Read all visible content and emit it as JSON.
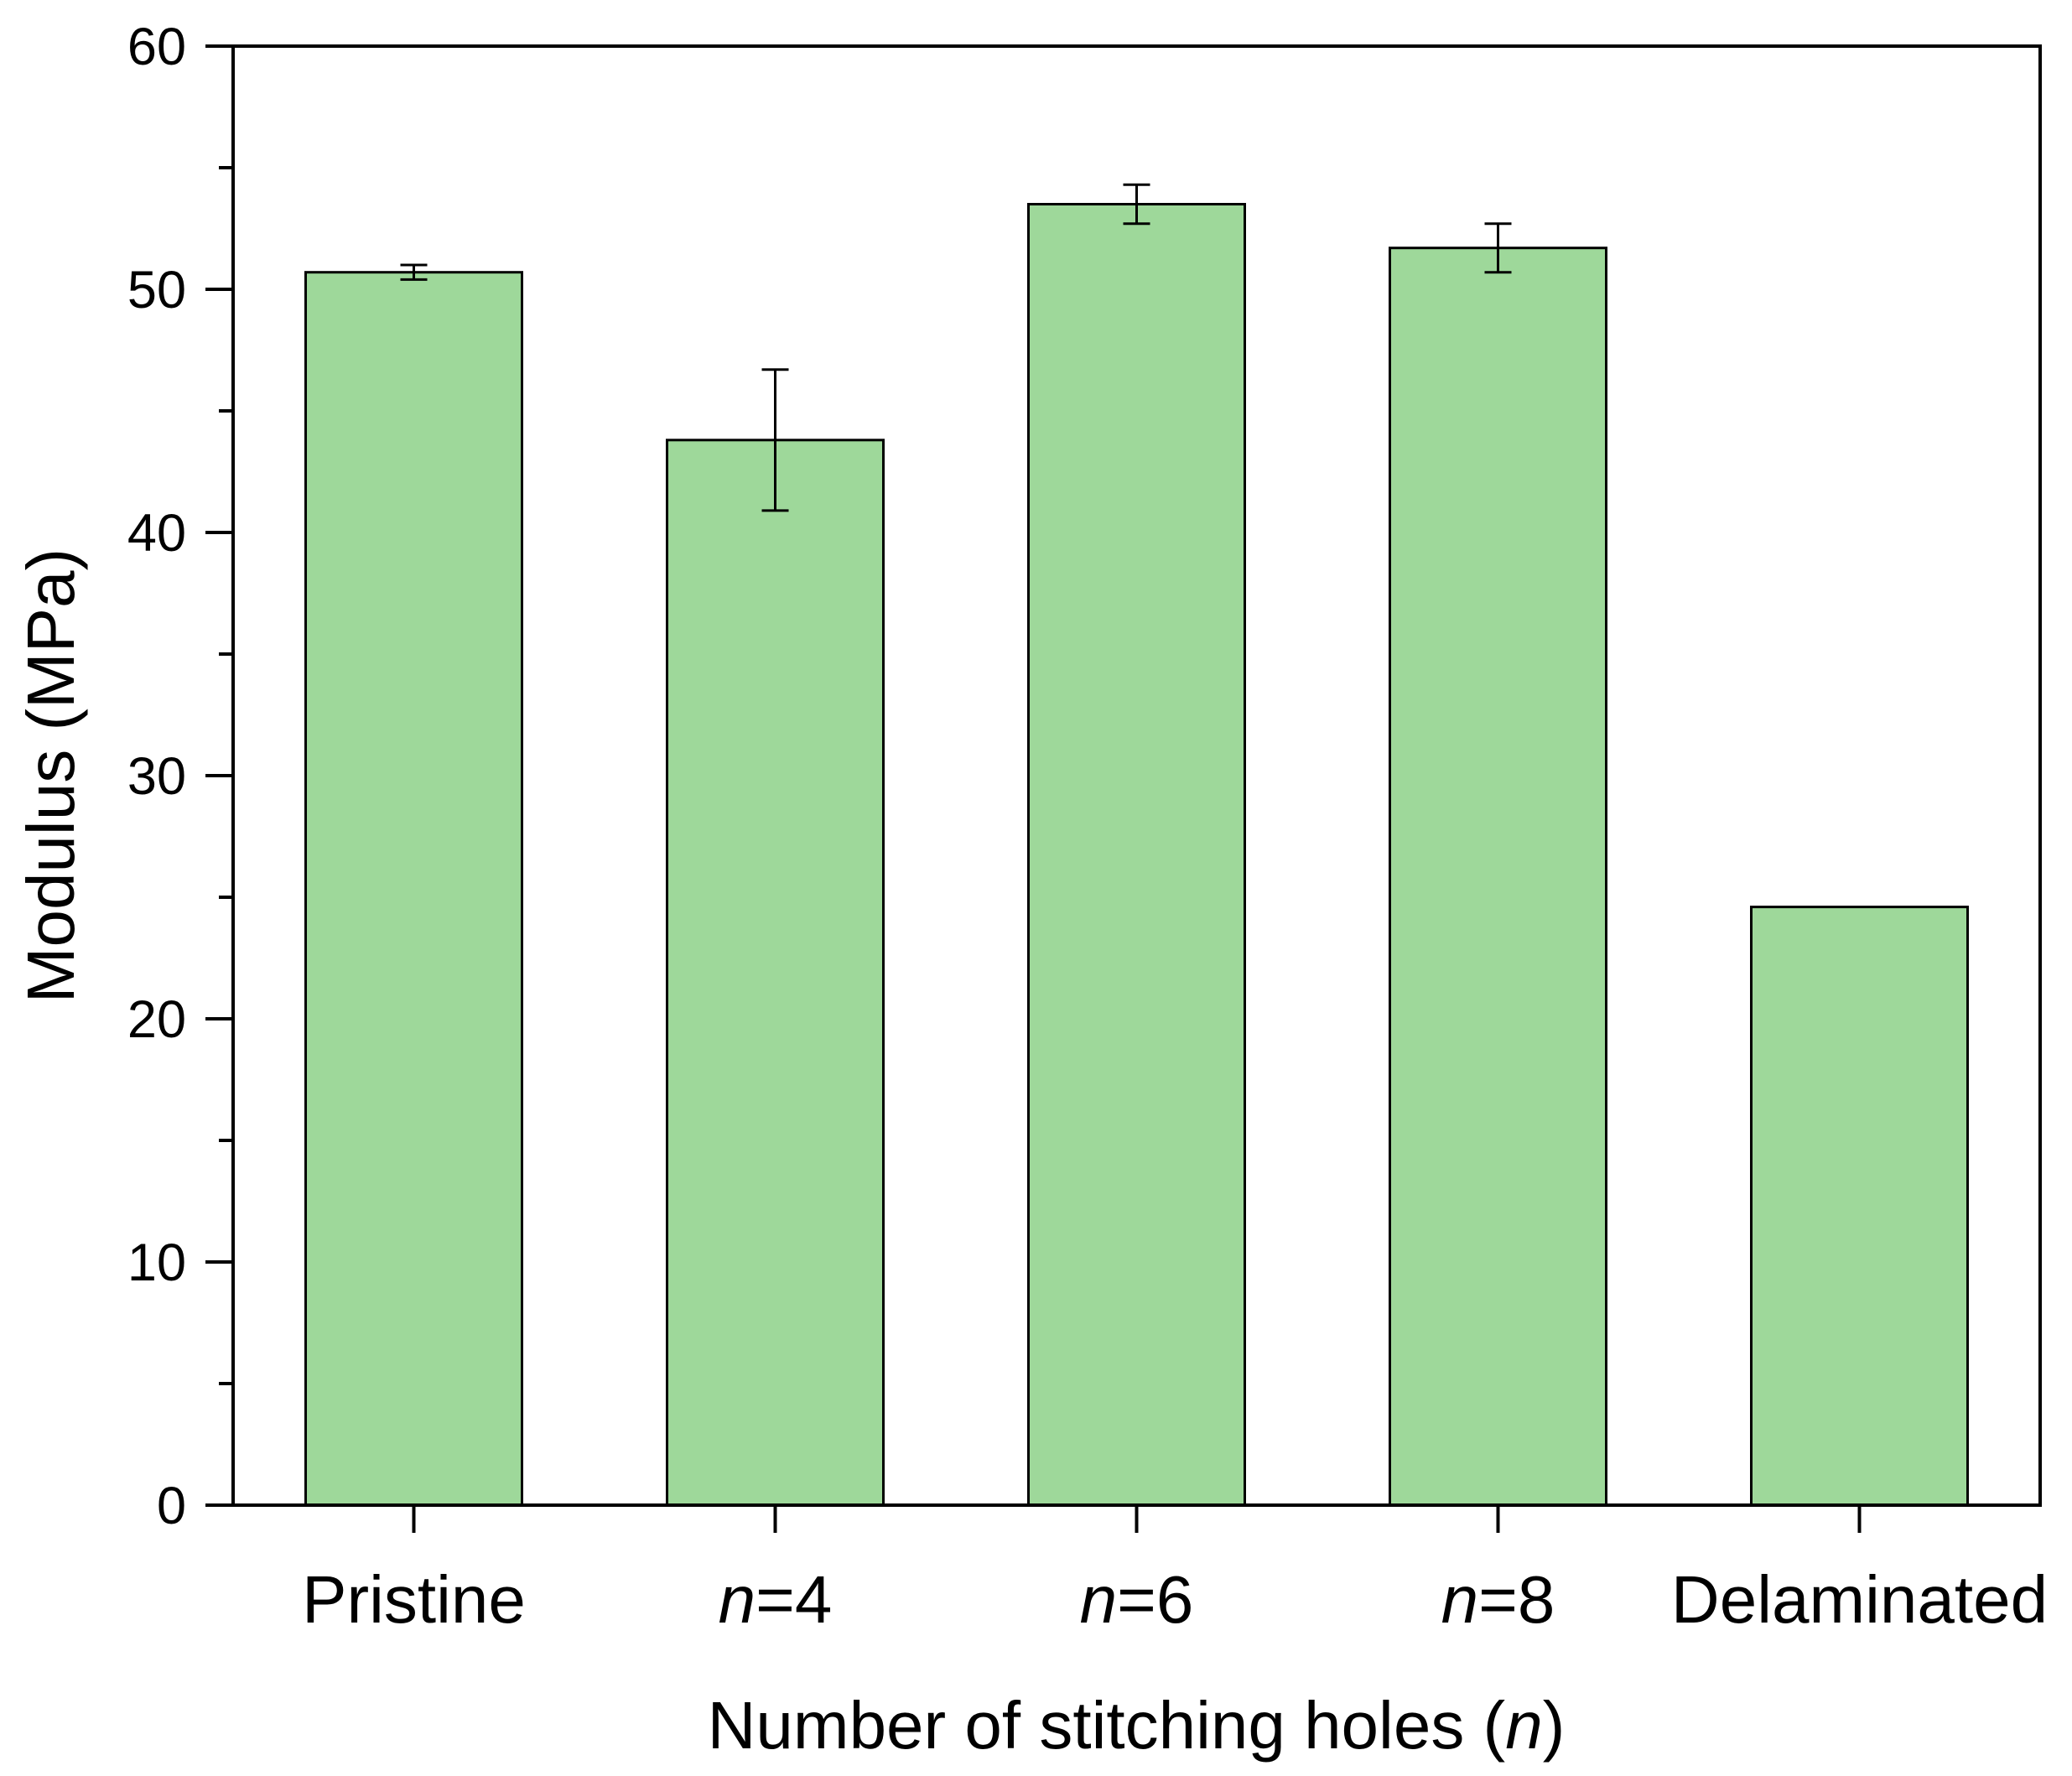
{
  "chart_data": {
    "type": "bar",
    "categories": [
      "Pristine",
      "n=4",
      "n=6",
      "n=8",
      "Delaminated"
    ],
    "category_labels": [
      {
        "italic": "",
        "rest": "Pristine"
      },
      {
        "italic": "n",
        "rest": "=4"
      },
      {
        "italic": "n",
        "rest": "=6"
      },
      {
        "italic": "n",
        "rest": "=8"
      },
      {
        "italic": "",
        "rest": "Delaminated"
      }
    ],
    "values": [
      50.7,
      43.8,
      53.5,
      51.7,
      24.6
    ],
    "errors": [
      0.3,
      2.9,
      0.8,
      1.0,
      null
    ],
    "xlabel": "Number of stitching holes (n)",
    "xlabel_parts": {
      "main": "Number of stitching holes (",
      "italic": "n",
      "end": ")"
    },
    "ylabel": "Modulus (MPa)",
    "ylim": [
      0,
      60
    ],
    "yticks": [
      0,
      10,
      20,
      30,
      40,
      50,
      60
    ],
    "grid": false,
    "bar_color": "#9ed89a",
    "edge_color": "#000000"
  }
}
